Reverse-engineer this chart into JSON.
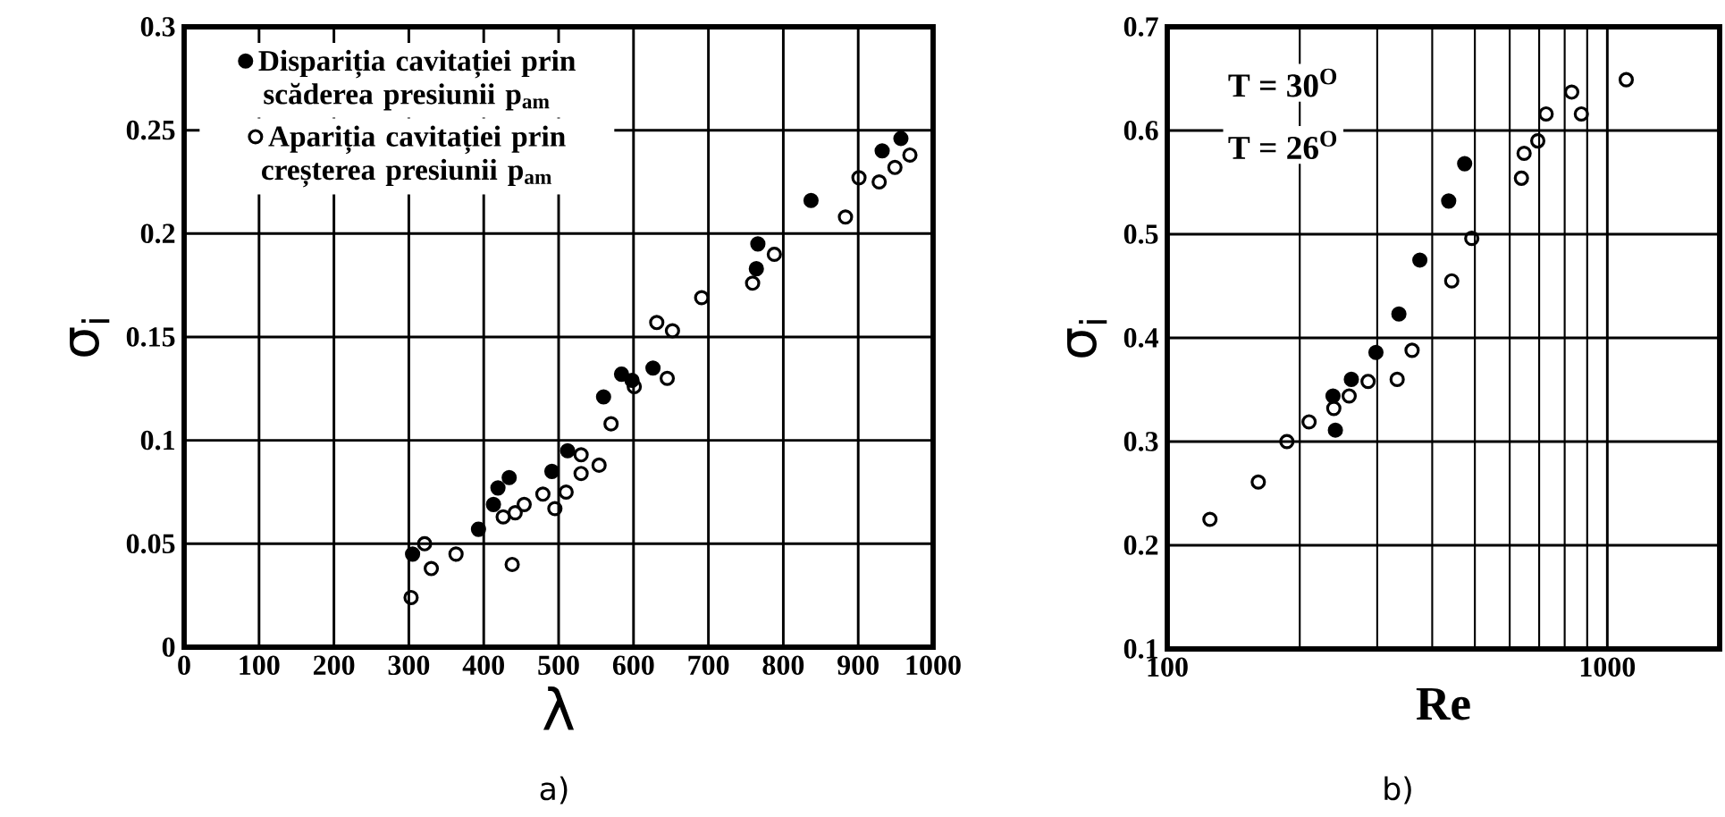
{
  "chart_data": [
    {
      "type": "scatter",
      "xlabel": "λ",
      "ylabel": "σ$_{i}$",
      "annotations": [
        "a)"
      ],
      "xlim": [
        0,
        1000
      ],
      "ylim": [
        0,
        0.3
      ],
      "xticks": [
        0,
        100,
        200,
        300,
        400,
        500,
        600,
        700,
        800,
        900,
        1000
      ],
      "yticks": [
        0,
        0.05,
        0.1,
        0.15,
        0.2,
        0.25,
        0.3
      ],
      "grid": true,
      "legend": "top left",
      "marker": "circle",
      "series": [
        {
          "name": "Dispariția cavitației prin scăderea presiunii p$_{am}$",
          "color": "#000000",
          "x": [
            305,
            393,
            413,
            419,
            434,
            491,
            512,
            560,
            584,
            598,
            626,
            764,
            766,
            837,
            932,
            957
          ],
          "values": [
            0.045,
            0.057,
            0.069,
            0.077,
            0.082,
            0.085,
            0.095,
            0.121,
            0.132,
            0.129,
            0.135,
            0.183,
            0.195,
            0.216,
            0.24,
            0.246
          ]
        },
        {
          "name": "Apariția cavitației prin creșterea presiunii p$_{am}$",
          "color": "#000000",
          "x": [
            303,
            321,
            330,
            363,
            438,
            426,
            442,
            454,
            479,
            495,
            510,
            530,
            530,
            554,
            570,
            601,
            645,
            631,
            652,
            691,
            759,
            788,
            883,
            901,
            928,
            949,
            969
          ],
          "values": [
            0.024,
            0.05,
            0.038,
            0.045,
            0.04,
            0.063,
            0.065,
            0.069,
            0.074,
            0.067,
            0.075,
            0.084,
            0.093,
            0.088,
            0.108,
            0.126,
            0.13,
            0.157,
            0.153,
            0.169,
            0.176,
            0.19,
            0.208,
            0.227,
            0.225,
            0.232,
            0.238
          ]
        }
      ]
    },
    {
      "type": "scatter",
      "xlabel": "Re",
      "ylabel": "σ$_{i}$",
      "annotations": [
        "T = 30$^{O}$",
        "T = 26$^{O}$",
        "b)"
      ],
      "log": "x",
      "xlim": [
        100,
        1800
      ],
      "ylim": [
        0.1,
        0.7
      ],
      "xticks": [
        100,
        1000
      ],
      "yticks": [
        0.1,
        0.2,
        0.3,
        0.4,
        0.5,
        0.6,
        0.7
      ],
      "grid": true,
      "marker": "circle",
      "series": [
        {
          "color": "#000000",
          "x": [
            238,
            241,
            262,
            298,
            336,
            375,
            436,
            474
          ],
          "values": [
            0.344,
            0.311,
            0.36,
            0.386,
            0.423,
            0.475,
            0.532,
            0.568
          ]
        },
        {
          "color": "#000000",
          "x": [
            125,
            161,
            187,
            210,
            239,
            259,
            286,
            333,
            360,
            443,
            492,
            638,
            647,
            695,
            726,
            830,
            873,
            1104
          ],
          "values": [
            0.225,
            0.261,
            0.3,
            0.319,
            0.332,
            0.344,
            0.358,
            0.36,
            0.388,
            0.455,
            0.496,
            0.554,
            0.578,
            0.59,
            0.616,
            0.637,
            0.616,
            0.649
          ]
        }
      ]
    }
  ]
}
